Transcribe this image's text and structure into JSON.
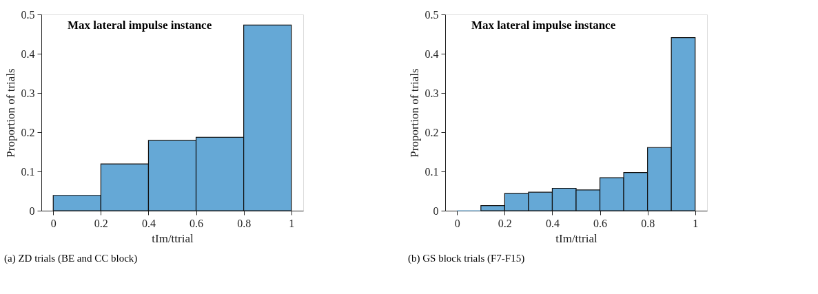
{
  "chart_data": [
    {
      "type": "histogram",
      "title": "Max lateral impulse instance",
      "xlabel": "tIm/ttrial",
      "ylabel": "Proportion of trials",
      "bins": [
        0,
        0.2,
        0.4,
        0.6,
        0.8,
        1
      ],
      "values": [
        0.039,
        0.119,
        0.179,
        0.187,
        0.473
      ],
      "color": "#65a8d6",
      "xlim": [
        -0.05,
        1.05
      ],
      "ylim": [
        0,
        0.5
      ],
      "xticks": [
        0,
        0.2,
        0.4,
        0.6,
        0.8,
        1
      ],
      "yticks": [
        0,
        0.1,
        0.2,
        0.3,
        0.4,
        0.5
      ],
      "grid": false,
      "annotations": [
        "(a) ZD trials (BE and CC block)"
      ]
    },
    {
      "type": "histogram",
      "title": "Max lateral impulse instance",
      "xlabel": "tIm/ttrial",
      "ylabel": "Proportion of trials",
      "bins": [
        0,
        0.1,
        0.2,
        0.3,
        0.4,
        0.5,
        0.6,
        0.7,
        0.8,
        0.9,
        1
      ],
      "values": [
        0,
        0.013,
        0.044,
        0.047,
        0.057,
        0.053,
        0.084,
        0.097,
        0.161,
        0.441
      ],
      "color": "#65a8d6",
      "xlim": [
        -0.05,
        1.05
      ],
      "ylim": [
        0,
        0.5
      ],
      "xticks": [
        0,
        0.2,
        0.4,
        0.6,
        0.8,
        1
      ],
      "yticks": [
        0,
        0.1,
        0.2,
        0.3,
        0.4,
        0.5
      ],
      "grid": false,
      "annotations": [
        "(b) GS block trials (F7-F15)"
      ]
    }
  ]
}
